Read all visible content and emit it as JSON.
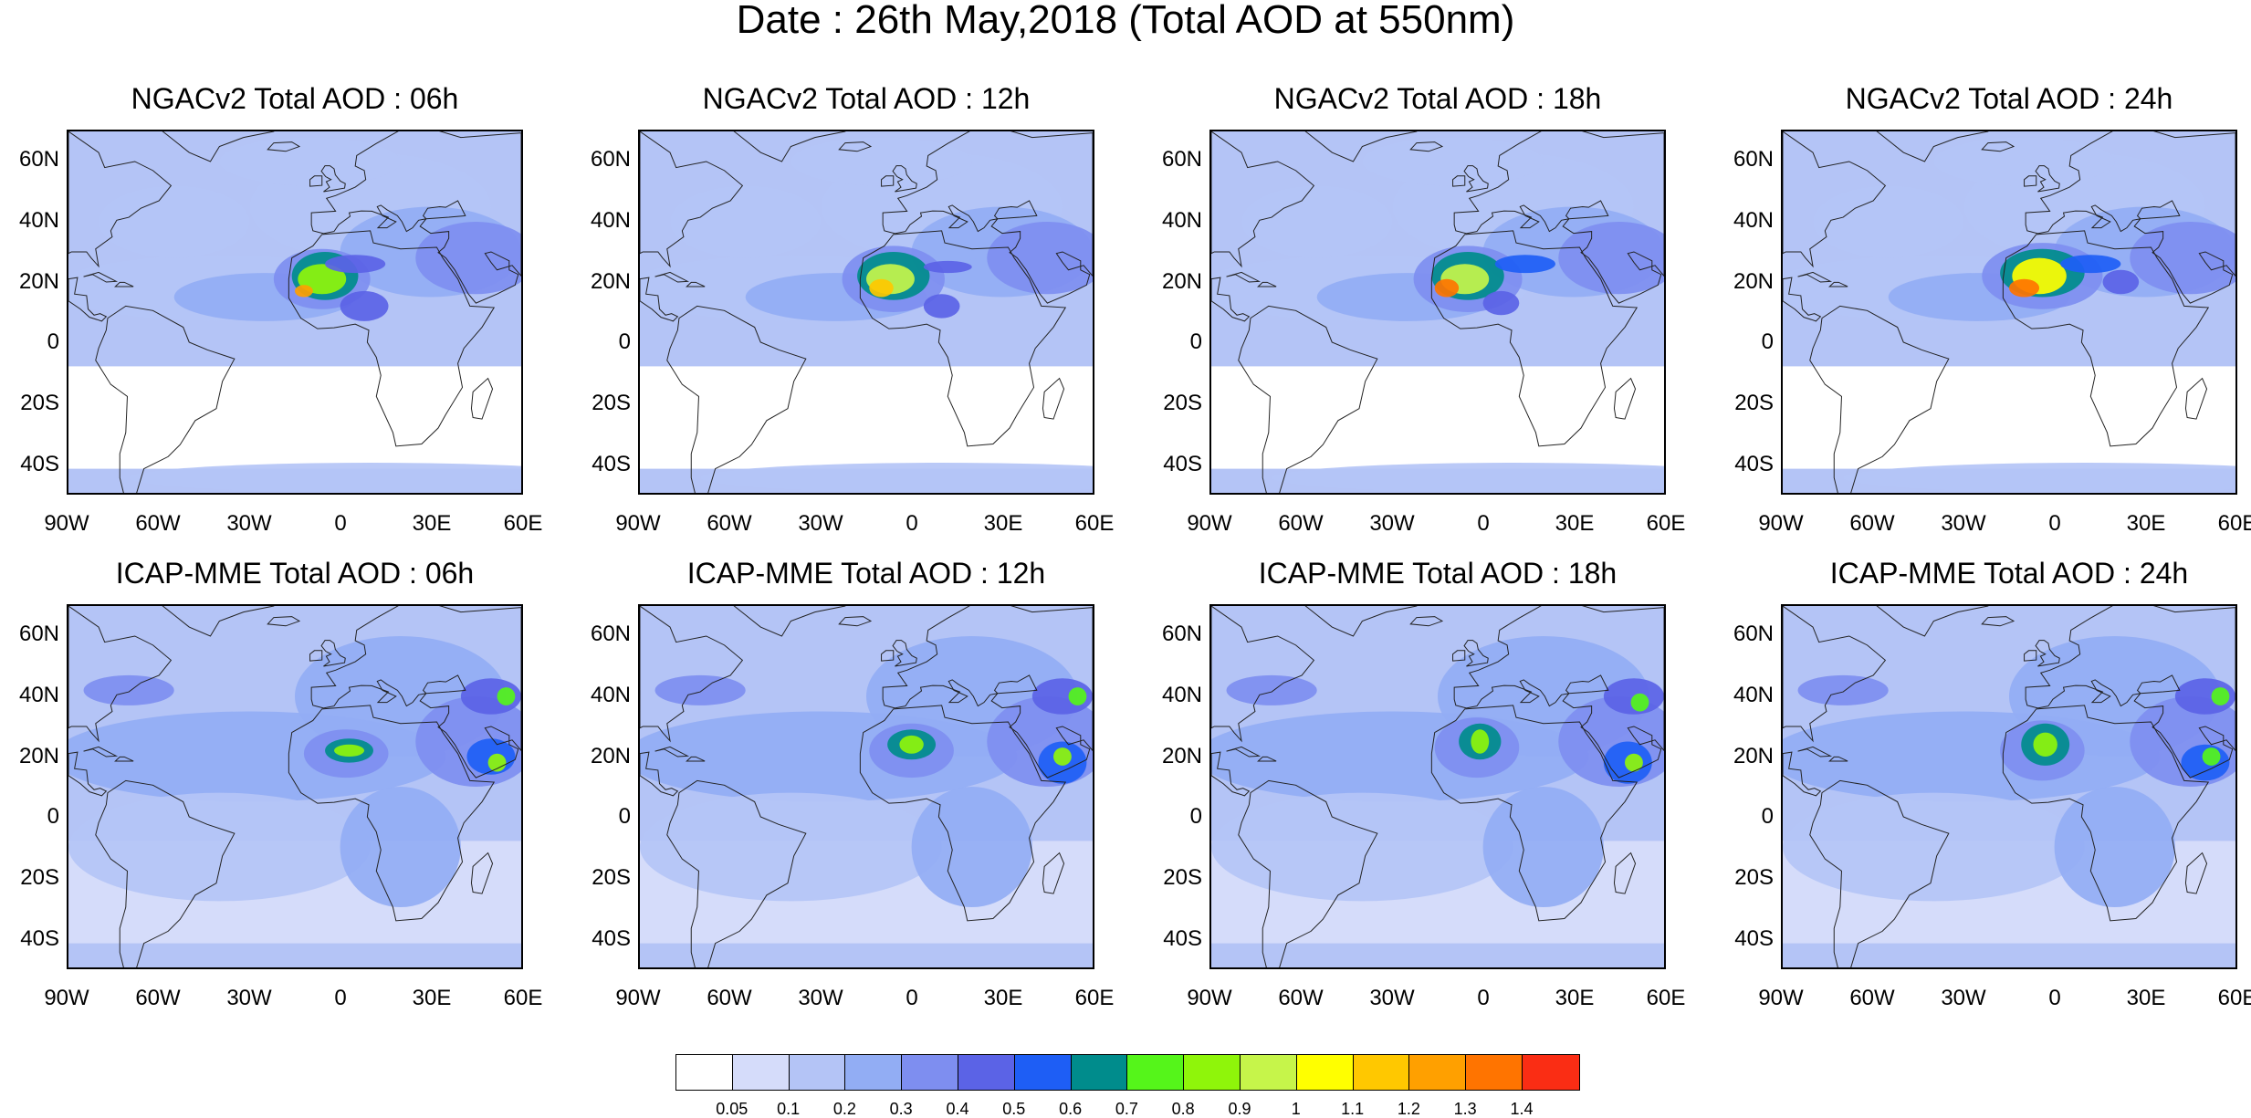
{
  "title": "Date : 26th May,2018 (Total AOD at 550nm)",
  "panels": [
    {
      "title": "NGACv2 Total AOD : 06h",
      "model": "NGACv2",
      "hour": "06h"
    },
    {
      "title": "NGACv2 Total AOD : 12h",
      "model": "NGACv2",
      "hour": "12h"
    },
    {
      "title": "NGACv2 Total AOD : 18h",
      "model": "NGACv2",
      "hour": "18h"
    },
    {
      "title": "NGACv2 Total AOD : 24h",
      "model": "NGACv2",
      "hour": "24h"
    },
    {
      "title": "ICAP-MME Total AOD : 06h",
      "model": "ICAP-MME",
      "hour": "06h"
    },
    {
      "title": "ICAP-MME Total AOD : 12h",
      "model": "ICAP-MME",
      "hour": "12h"
    },
    {
      "title": "ICAP-MME Total AOD : 18h",
      "model": "ICAP-MME",
      "hour": "18h"
    },
    {
      "title": "ICAP-MME Total AOD : 24h",
      "model": "ICAP-MME",
      "hour": "24h"
    }
  ],
  "lat_ticks": [
    "60N",
    "40N",
    "20N",
    "0",
    "20S",
    "40S"
  ],
  "lon_ticks": [
    "90W",
    "60W",
    "30W",
    "0",
    "30E",
    "60E"
  ],
  "map_extent": {
    "lon": [
      -90,
      60
    ],
    "lat": [
      -50,
      70
    ]
  },
  "colorbar": {
    "colors": [
      "#ffffff",
      "#d5dcfa",
      "#b4c4f6",
      "#92adf4",
      "#7e8ef0",
      "#5b63e6",
      "#1e5ef5",
      "#008c8c",
      "#55f51a",
      "#8ff50a",
      "#c6f54a",
      "#ffff00",
      "#ffc800",
      "#ffa000",
      "#ff7400",
      "#fa2d14"
    ],
    "labels": [
      "0.05",
      "0.1",
      "0.2",
      "0.3",
      "0.4",
      "0.5",
      "0.6",
      "0.7",
      "0.8",
      "0.9",
      "1",
      "1.1",
      "1.2",
      "1.3",
      "1.4"
    ]
  }
}
